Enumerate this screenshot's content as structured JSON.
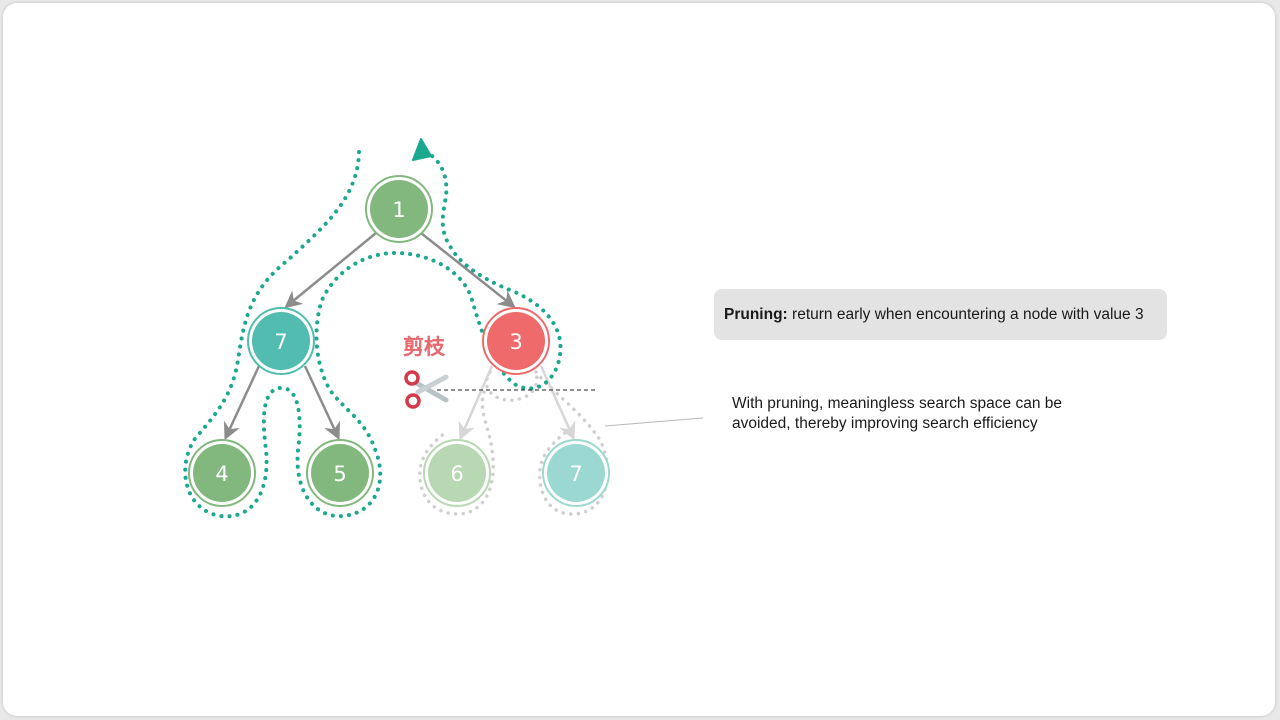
{
  "diagram": {
    "nodes": [
      {
        "id": "n1",
        "label": "1",
        "color": "#82b87e",
        "state": "active"
      },
      {
        "id": "n7a",
        "label": "7",
        "color": "#53bcb0",
        "state": "active"
      },
      {
        "id": "n3",
        "label": "3",
        "color": "#ee6a6b",
        "state": "pruned-root"
      },
      {
        "id": "n4",
        "label": "4",
        "color": "#82b87e",
        "state": "active"
      },
      {
        "id": "n5",
        "label": "5",
        "color": "#82b87e",
        "state": "active"
      },
      {
        "id": "n6",
        "label": "6",
        "color": "#b7d8b2",
        "state": "pruned"
      },
      {
        "id": "n7b",
        "label": "7",
        "color": "#9bd8d1",
        "state": "pruned"
      }
    ],
    "edges": [
      {
        "from": "n1",
        "to": "n7a",
        "state": "active"
      },
      {
        "from": "n1",
        "to": "n3",
        "state": "active"
      },
      {
        "from": "n7a",
        "to": "n4",
        "state": "active"
      },
      {
        "from": "n7a",
        "to": "n5",
        "state": "active"
      },
      {
        "from": "n3",
        "to": "n6",
        "state": "pruned"
      },
      {
        "from": "n3",
        "to": "n7b",
        "state": "pruned"
      }
    ],
    "prune_label": "剪枝",
    "icons": {
      "scissors": "scissors-icon"
    },
    "colors": {
      "search_path": "#1aa88f",
      "edge": "#8c8c8c",
      "pruned_edge": "#d6d6d6",
      "pruned_path": "#d0d0d0",
      "prune_text": "#e8676c"
    }
  },
  "callout": {
    "title": "Pruning:",
    "text": "return early when encountering a node with value 3"
  },
  "note": {
    "text": "With pruning, meaningless search space can be avoided, thereby improving search efficiency"
  }
}
